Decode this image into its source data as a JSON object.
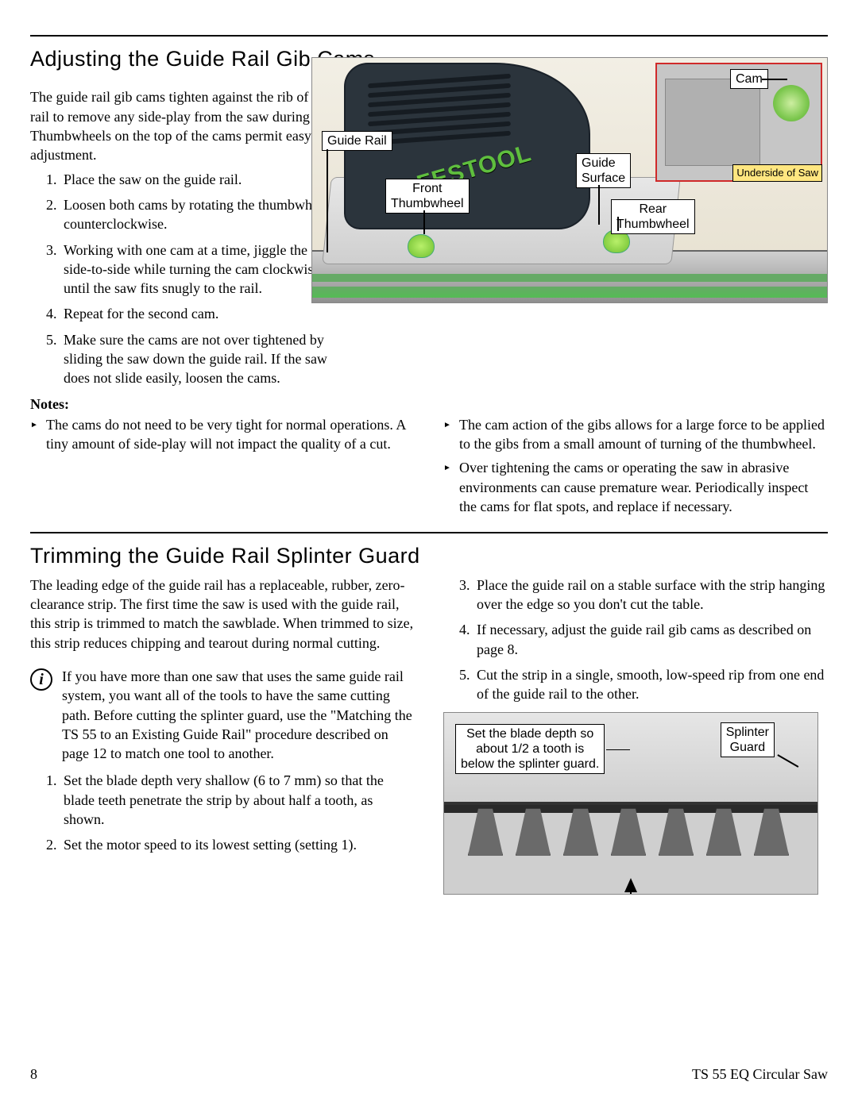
{
  "section1": {
    "heading": "Adjusting the Guide Rail Gib Cams",
    "intro": "The guide rail gib cams tighten against the rib of the guide rail to remove any side-play from the saw during a cut. Thumbwheels on the top of the cams permit easy adjustment.",
    "steps": [
      "Place the saw on the guide rail.",
      "Loosen both cams by rotating the thumbwheels counterclockwise.",
      "Working with one cam at a time, jiggle the saw side-to-side while turning the cam clockwise until the saw fits snugly to the rail.",
      "Repeat for the second cam.",
      "Make sure the cams are not over tightened by sliding the saw down the guide rail. If the saw does not slide easily, loosen the cams."
    ],
    "notes_label": "Notes:",
    "notes_left": [
      "The cams do not need to be very tight for normal operations. A tiny amount of side-play will not impact the quality of a cut."
    ],
    "notes_right": [
      "The cam action of the gibs allows for a large force to be applied to the gibs from a small amount of turning of the thumbwheel.",
      "Over tightening the cams or operating the saw in abrasive environments can cause premature wear. Periodically inspect the cams for flat spots, and replace if necessary."
    ]
  },
  "fig1": {
    "brand": "FESTOOL",
    "labels": {
      "guide_rail": "Guide Rail",
      "front_thumb": "Front\nThumbwheel",
      "guide_surface": "Guide\nSurface",
      "rear_thumb": "Rear\nThumbwheel",
      "cam": "Cam",
      "underside": "Underside\nof Saw"
    },
    "colors": {
      "body": "#2b343c",
      "accent_green": "#7ec850",
      "brand_green": "#5fbf3e",
      "inset_border": "#d02a2a",
      "underside_bg": "#ffe680",
      "rail_green": "#66aa66",
      "background": "#ece7da"
    }
  },
  "section2": {
    "heading": "Trimming the Guide Rail Splinter Guard",
    "intro": "The leading edge of the guide rail has a replaceable, rubber, zero-clearance strip. The first time the saw is used with the guide rail, this strip is trimmed to match the sawblade. When trimmed to size, this strip reduces chipping and tearout during normal cutting.",
    "info": "If you have more than one saw that uses the same guide rail system, you want all of the tools to have the same cutting path. Before cutting the splinter guard, use the \"Matching the TS 55 to an Existing Guide Rail\" procedure described on page 12 to match one tool to another.",
    "steps_left": [
      "Set the blade depth very shallow (6 to 7 mm) so that the blade teeth penetrate the strip by about half a tooth, as shown.",
      "Set the motor speed to its lowest setting (setting 1)."
    ],
    "steps_right_start": 3,
    "steps_right": [
      "Place the guide rail on a stable surface with the strip hanging over the edge so you don't cut the table.",
      "If necessary, adjust the guide rail gib cams as described on page 8.",
      "Cut the strip in a single, smooth, low-speed rip from one end of the guide rail to the other."
    ]
  },
  "fig2": {
    "labels": {
      "depth": "Set the blade depth so\nabout 1/2 a tooth is\nbelow the splinter guard.",
      "splinter": "Splinter\nGuard"
    },
    "tooth_count": 7,
    "colors": {
      "guard": "#e6e6e6",
      "edge": "#2a2a2a",
      "tooth": "#6a6a6a"
    }
  },
  "footer": {
    "page": "8",
    "doc": "TS 55 EQ Circular Saw"
  }
}
